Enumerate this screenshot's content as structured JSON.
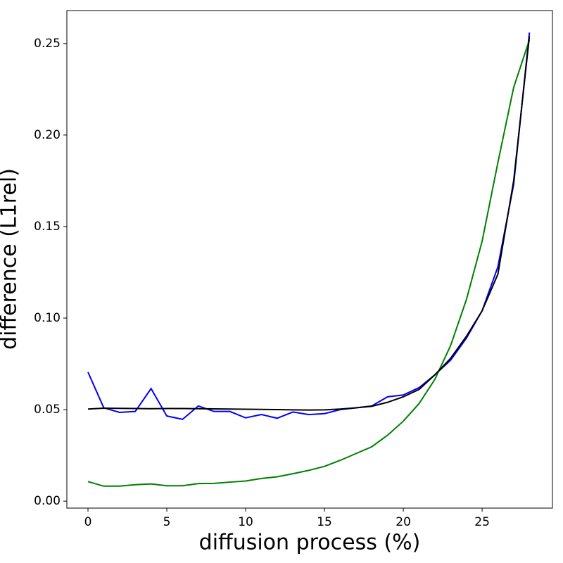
{
  "chart_data": {
    "type": "line",
    "xlabel": "diffusion process (%)",
    "ylabel": "difference (L1rel)",
    "x": [
      0,
      1,
      2,
      3,
      4,
      5,
      6,
      7,
      8,
      9,
      10,
      11,
      12,
      13,
      14,
      15,
      16,
      17,
      18,
      19,
      20,
      21,
      22,
      23,
      24,
      25,
      26,
      27,
      28
    ],
    "series": [
      {
        "color": "#0000ff",
        "values": [
          0.0705,
          0.051,
          0.0485,
          0.049,
          0.0615,
          0.0465,
          0.0447,
          0.052,
          0.049,
          0.049,
          0.0455,
          0.0473,
          0.0453,
          0.0487,
          0.0473,
          0.0478,
          0.05,
          0.051,
          0.052,
          0.057,
          0.058,
          0.062,
          0.069,
          0.077,
          0.089,
          0.104,
          0.128,
          0.173,
          0.256
        ]
      },
      {
        "color": "#008000",
        "values": [
          0.0107,
          0.0082,
          0.0082,
          0.009,
          0.0094,
          0.0084,
          0.0084,
          0.0096,
          0.0097,
          0.0104,
          0.011,
          0.0124,
          0.0133,
          0.015,
          0.0168,
          0.019,
          0.0223,
          0.026,
          0.0297,
          0.036,
          0.0437,
          0.0533,
          0.0665,
          0.085,
          0.11,
          0.142,
          0.185,
          0.226,
          0.252
        ]
      },
      {
        "color": "#000000",
        "values": [
          0.0503,
          0.0508,
          0.0507,
          0.0506,
          0.0505,
          0.0506,
          0.0506,
          0.0505,
          0.0504,
          0.0503,
          0.0502,
          0.0501,
          0.05,
          0.0499,
          0.0498,
          0.0499,
          0.0503,
          0.051,
          0.0518,
          0.054,
          0.057,
          0.061,
          0.069,
          0.078,
          0.09,
          0.104,
          0.124,
          0.175,
          0.254
        ]
      }
    ],
    "xlim": [
      -1.34,
      29.46
    ],
    "ylim": [
      -0.0038,
      0.268
    ],
    "xticks": [
      0,
      5,
      10,
      15,
      20,
      25
    ],
    "yticks": [
      {
        "value": 0,
        "label": "0.00"
      },
      0.05,
      {
        "value": 0.1,
        "label": "0.10"
      },
      0.15,
      {
        "value": 0.2,
        "label": "0.20"
      },
      0.25
    ]
  }
}
